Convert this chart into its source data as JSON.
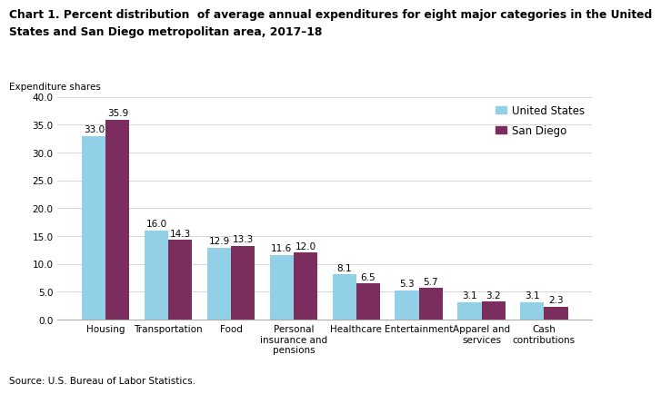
{
  "title_line1": "Chart 1. Percent distribution  of average annual expenditures for eight major categories in the United",
  "title_line2": "States and San Diego metropolitan area, 2017–18",
  "ylabel": "Expenditure shares",
  "source": "Source: U.S. Bureau of Labor Statistics.",
  "categories": [
    "Housing",
    "Transportation",
    "Food",
    "Personal\ninsurance and\npensions",
    "Healthcare",
    "Entertainment",
    "Apparel and\nservices",
    "Cash\ncontributions"
  ],
  "us_values": [
    33.0,
    16.0,
    12.9,
    11.6,
    8.1,
    5.3,
    3.1,
    3.1
  ],
  "sd_values": [
    35.9,
    14.3,
    13.3,
    12.0,
    6.5,
    5.7,
    3.2,
    2.3
  ],
  "us_color": "#92D0E8",
  "sd_color": "#7B2D5E",
  "ylim": [
    0,
    40
  ],
  "yticks": [
    0.0,
    5.0,
    10.0,
    15.0,
    20.0,
    25.0,
    30.0,
    35.0,
    40.0
  ],
  "legend_us": "United States",
  "legend_sd": "San Diego",
  "bar_width": 0.38,
  "title_fontsize": 8.8,
  "label_fontsize": 7.5,
  "tick_fontsize": 7.5,
  "legend_fontsize": 8.5,
  "source_fontsize": 7.5
}
